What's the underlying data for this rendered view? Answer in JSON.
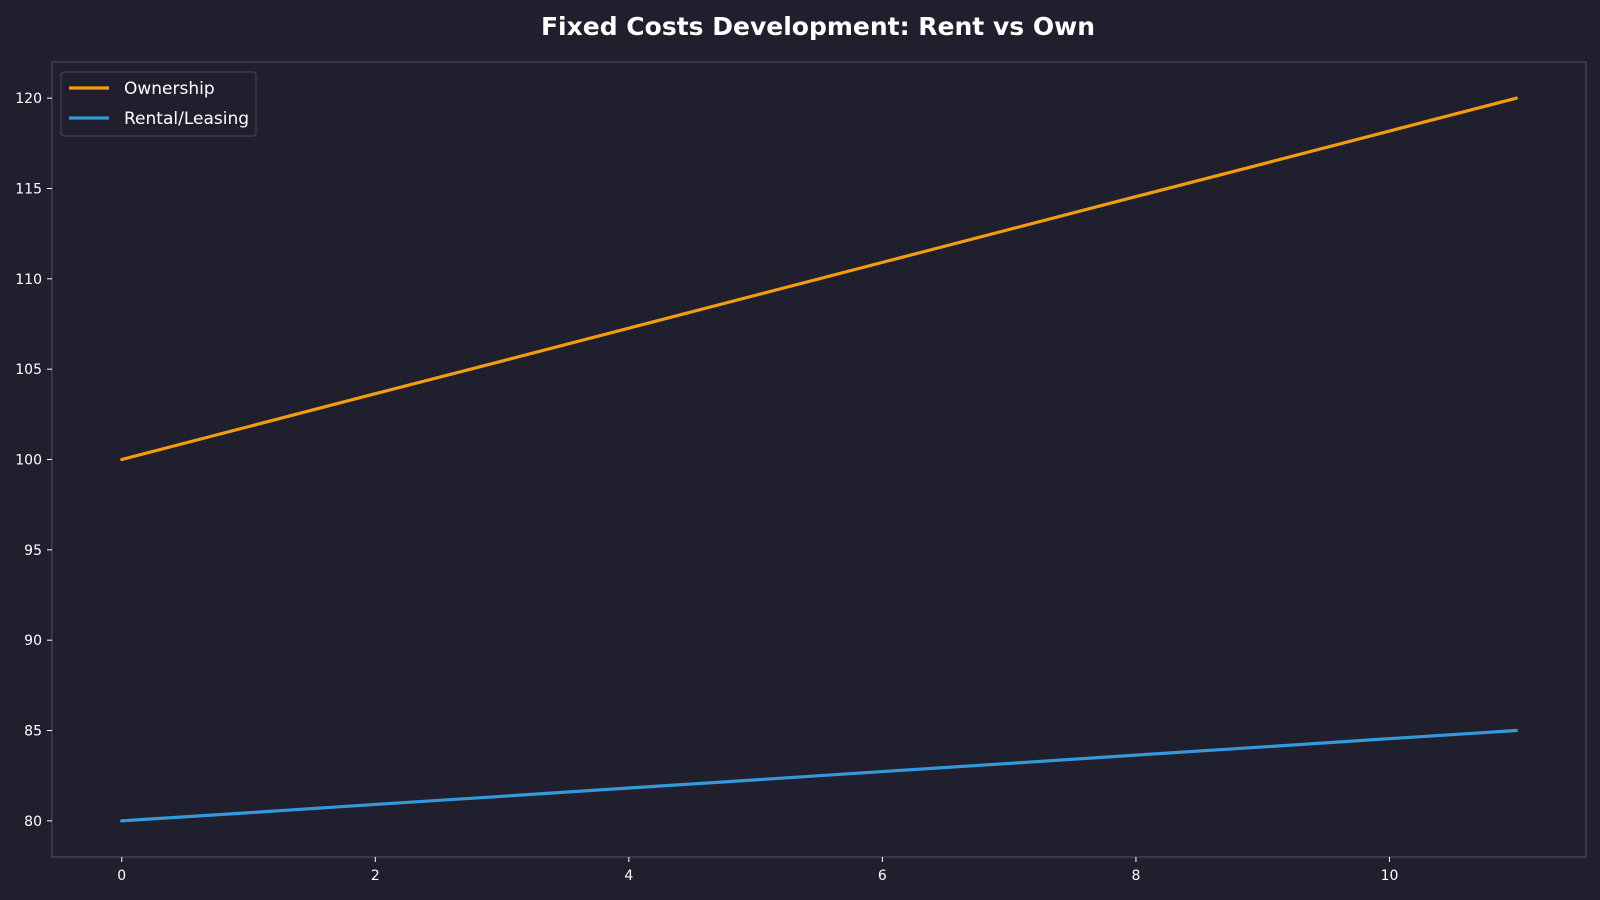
{
  "chart_data": {
    "type": "line",
    "title": "Fixed Costs Development: Rent vs Own",
    "xlabel": "",
    "ylabel": "",
    "x": [
      0,
      1,
      2,
      3,
      4,
      5,
      6,
      7,
      8,
      9,
      10,
      11
    ],
    "series": [
      {
        "name": "Ownership",
        "color": "#f39c12",
        "values": [
          100,
          101.82,
          103.64,
          105.45,
          107.27,
          109.09,
          110.91,
          112.73,
          114.55,
          116.36,
          118.18,
          120
        ]
      },
      {
        "name": "Rental/Leasing",
        "color": "#3498db",
        "values": [
          80,
          80.45,
          80.91,
          81.36,
          81.82,
          82.27,
          82.73,
          83.18,
          83.64,
          84.09,
          84.55,
          85
        ]
      }
    ],
    "xlim": [
      -0.55,
      11.55
    ],
    "ylim": [
      78,
      122
    ],
    "xticks": [
      0,
      2,
      4,
      6,
      8,
      10
    ],
    "yticks": [
      80,
      85,
      90,
      95,
      100,
      105,
      110,
      115,
      120
    ],
    "grid": false,
    "legend_position": "top-left"
  },
  "colors": {
    "background": "#1f1f2e",
    "axes_edge": "#4a4a5a",
    "text": "#ffffff"
  }
}
